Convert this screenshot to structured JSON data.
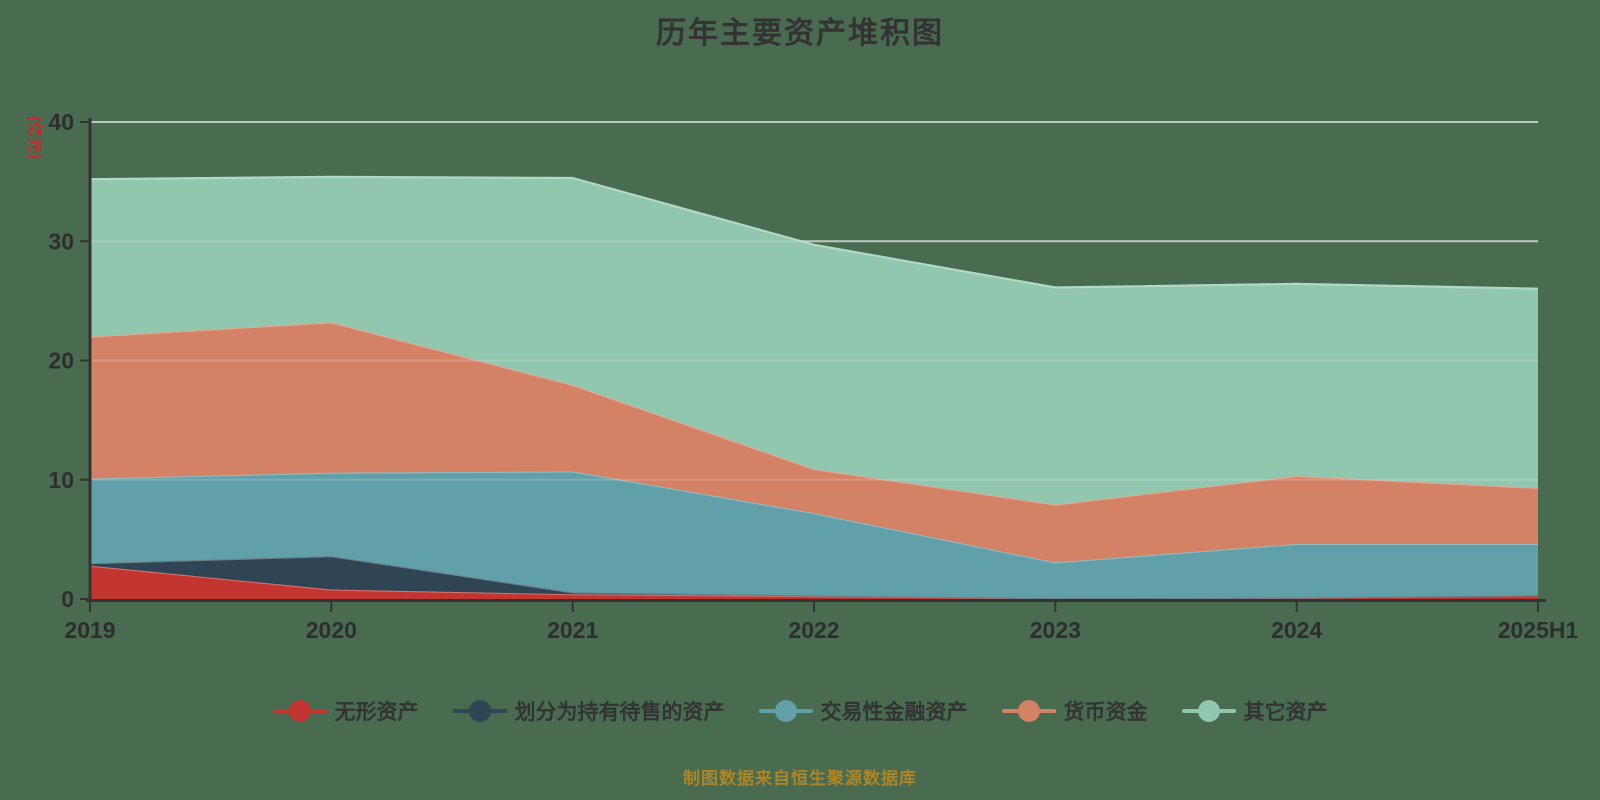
{
  "title": "历年主要资产堆积图",
  "footer": "制图数据来自恒生聚源数据库",
  "y_axis": {
    "name": "(亿元)",
    "ticks": [
      "0",
      "10",
      "20",
      "30",
      "40"
    ]
  },
  "x_axis": {
    "ticks": [
      "2019",
      "2020",
      "2021",
      "2022",
      "2023",
      "2024",
      "2025H1"
    ]
  },
  "colors": {
    "background": "#496b50",
    "axis": "#333333",
    "grid": "#d6dad4",
    "title_text": "#333333",
    "unit_label": "#cf2727",
    "footer_text": "#ad8526",
    "legend_text": "#333333"
  },
  "legend": {
    "items": [
      {
        "label": "无形资产",
        "color": "#c23531"
      },
      {
        "label": "划分为持有待售的资产",
        "color": "#2f4554"
      },
      {
        "label": "交易性金融资产",
        "color": "#61a0a8"
      },
      {
        "label": "货币资金",
        "color": "#d48265"
      },
      {
        "label": "其它资产",
        "color": "#91c7ae"
      }
    ]
  },
  "chart_data": {
    "type": "area",
    "stacked": true,
    "title": "历年主要资产堆积图",
    "xlabel": "",
    "ylabel": "(亿元)",
    "ylim": [
      0,
      40
    ],
    "grid": true,
    "legend_position": "bottom",
    "categories": [
      "2019",
      "2020",
      "2021",
      "2022",
      "2023",
      "2024",
      "2025H1"
    ],
    "series": [
      {
        "id": "intangible-assets",
        "name": "无形资产",
        "color": "#c23531",
        "values": [
          2.8,
          0.8,
          0.4,
          0.25,
          0.05,
          0.1,
          0.3
        ]
      },
      {
        "id": "assets-held-for-sale",
        "name": "划分为持有待售的资产",
        "color": "#2f4554",
        "values": [
          0.2,
          2.8,
          0.15,
          0.05,
          0.02,
          0.02,
          0.02
        ]
      },
      {
        "id": "trading-financial-assets",
        "name": "交易性金融资产",
        "color": "#61a0a8",
        "values": [
          7.1,
          7.0,
          10.15,
          6.9,
          3.0,
          4.5,
          4.3
        ]
      },
      {
        "id": "monetary-funds",
        "name": "货币资金",
        "color": "#d48265",
        "values": [
          11.9,
          12.6,
          7.25,
          3.7,
          4.85,
          5.7,
          4.7
        ]
      },
      {
        "id": "other-assets",
        "name": "其它资产",
        "color": "#91c7ae",
        "values": [
          13.2,
          12.2,
          17.35,
          18.8,
          18.2,
          16.1,
          16.7
        ]
      }
    ],
    "source_note": "制图数据来自恒生聚源数据库"
  }
}
